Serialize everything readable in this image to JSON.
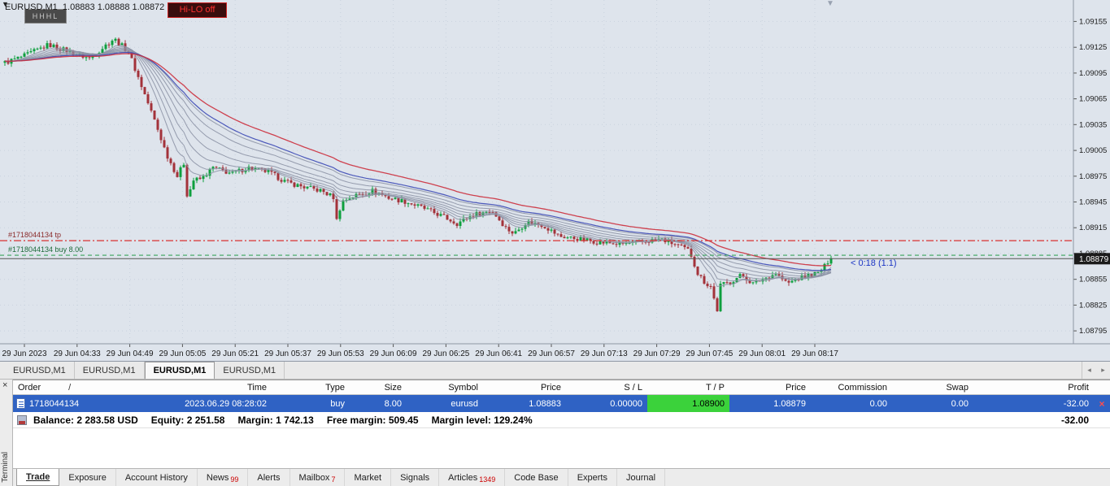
{
  "chart": {
    "symbol_ohlc": "EURUSD,M1  1.08883 1.08888 1.08872 1.08",
    "hhhl_button": "HHHL",
    "hilo_button": "Hi-LO off",
    "menu_arrow": "▼",
    "shift_marker": "▼",
    "countdown_label": "< 0:18 (1.1)",
    "tp_line_label": "#1718044134 tp",
    "buy_line_label": "#1718044134 buy 8.00",
    "bid_price": "1.08879",
    "price_range": {
      "max": 1.0918,
      "min": 1.0878
    },
    "levels": {
      "tp": 1.089,
      "buy": 1.08883,
      "bid": 1.08879
    },
    "price_axis": [
      "1.09155",
      "1.09125",
      "1.09095",
      "1.09065",
      "1.09035",
      "1.09005",
      "1.08975",
      "1.08945",
      "1.08915",
      "1.08885",
      "1.08855",
      "1.08825",
      "1.08795"
    ],
    "time_axis": [
      "29 Jun 2023",
      "29 Jun 04:33",
      "29 Jun 04:49",
      "29 Jun 05:05",
      "29 Jun 05:21",
      "29 Jun 05:37",
      "29 Jun 05:53",
      "29 Jun 06:09",
      "29 Jun 06:25",
      "29 Jun 06:41",
      "29 Jun 06:57",
      "29 Jun 07:13",
      "29 Jun 07:29",
      "29 Jun 07:45",
      "29 Jun 08:01",
      "29 Jun 08:17"
    ],
    "anchors": [
      [
        0,
        1.09105
      ],
      [
        30,
        1.09115
      ],
      [
        60,
        1.09128
      ],
      [
        85,
        1.0912
      ],
      [
        110,
        1.09112
      ],
      [
        140,
        1.09135
      ],
      [
        158,
        1.0912
      ],
      [
        172,
        1.09085
      ],
      [
        190,
        1.0904
      ],
      [
        205,
        1.09
      ],
      [
        218,
        1.08975
      ],
      [
        226,
        1.0899
      ],
      [
        231,
        1.08945
      ],
      [
        236,
        1.0897
      ],
      [
        248,
        1.08972
      ],
      [
        262,
        1.08985
      ],
      [
        285,
        1.08978
      ],
      [
        305,
        1.08985
      ],
      [
        330,
        1.0898
      ],
      [
        352,
        1.08968
      ],
      [
        375,
        1.08962
      ],
      [
        395,
        1.08958
      ],
      [
        411,
        1.0895
      ],
      [
        415,
        1.08915
      ],
      [
        419,
        1.08945
      ],
      [
        435,
        1.08952
      ],
      [
        458,
        1.08958
      ],
      [
        478,
        1.0895
      ],
      [
        500,
        1.08945
      ],
      [
        520,
        1.08938
      ],
      [
        545,
        1.08928
      ],
      [
        562,
        1.0892
      ],
      [
        582,
        1.0893
      ],
      [
        605,
        1.08935
      ],
      [
        622,
        1.08915
      ],
      [
        632,
        1.08908
      ],
      [
        648,
        1.08922
      ],
      [
        668,
        1.08918
      ],
      [
        688,
        1.08905
      ],
      [
        712,
        1.08902
      ],
      [
        738,
        1.08898
      ],
      [
        762,
        1.08896
      ],
      [
        788,
        1.08898
      ],
      [
        812,
        1.08902
      ],
      [
        832,
        1.08895
      ],
      [
        848,
        1.08888
      ],
      [
        858,
        1.08862
      ],
      [
        868,
        1.0885
      ],
      [
        876,
        1.08846
      ],
      [
        881,
        1.08812
      ],
      [
        886,
        1.08848
      ],
      [
        898,
        1.08852
      ],
      [
        912,
        1.0886
      ],
      [
        926,
        1.0885
      ],
      [
        940,
        1.08856
      ],
      [
        954,
        1.08862
      ],
      [
        968,
        1.0885
      ],
      [
        982,
        1.08856
      ],
      [
        996,
        1.0886
      ],
      [
        1006,
        1.08862
      ],
      [
        1014,
        1.0887
      ],
      [
        1022,
        1.08882
      ]
    ],
    "colors": {
      "up": "#0e9f3e",
      "down": "#a3323a",
      "ma_gray": "#8d94a6",
      "ma_red": "#cc2f3d",
      "ma_blue": "#3c49b5",
      "tp_line": "#d93030",
      "buy_line": "#3aa35c",
      "grid": "#c9d2de",
      "axis": "#8f97a5",
      "bid_box": "#1b1b1b"
    }
  },
  "chart_tabs": [
    {
      "label": "EURUSD,M1",
      "active": false
    },
    {
      "label": "EURUSD,M1",
      "active": false
    },
    {
      "label": "EURUSD,M1",
      "active": true
    },
    {
      "label": "EURUSD,M1",
      "active": false
    }
  ],
  "chart_tabs_scroll": {
    "left": "◂",
    "right": "▸"
  },
  "terminal": {
    "strip_label": "Terminal",
    "close_label": "×",
    "sort_indicator": "/",
    "columns": [
      "Order",
      "Time",
      "Type",
      "Size",
      "Symbol",
      "Price",
      "S / L",
      "T / P",
      "Price",
      "Commission",
      "Swap",
      "Profit"
    ],
    "order_row": {
      "order": "1718044134",
      "time": "2023.06.29 08:28:02",
      "type": "buy",
      "size": "8.00",
      "symbol": "eurusd",
      "price_open": "1.08883",
      "sl": "0.00000",
      "tp": "1.08900",
      "price_current": "1.08879",
      "commission": "0.00",
      "swap": "0.00",
      "profit": "-32.00",
      "close": "×"
    },
    "balance": [
      "Balance: 2 283.58 USD",
      "Equity: 2 251.58",
      "Margin: 1 742.13",
      "Free margin: 509.45",
      "Margin level: 129.24%"
    ],
    "balance_profit": "-32.00",
    "tabs": [
      {
        "label": "Trade",
        "badge": "",
        "active": true
      },
      {
        "label": "Exposure",
        "badge": ""
      },
      {
        "label": "Account History",
        "badge": ""
      },
      {
        "label": "News",
        "badge": "99"
      },
      {
        "label": "Alerts",
        "badge": ""
      },
      {
        "label": "Mailbox",
        "badge": "7"
      },
      {
        "label": "Market",
        "badge": ""
      },
      {
        "label": "Signals",
        "badge": ""
      },
      {
        "label": "Articles",
        "badge": "1349"
      },
      {
        "label": "Code Base",
        "badge": ""
      },
      {
        "label": "Experts",
        "badge": ""
      },
      {
        "label": "Journal",
        "badge": ""
      }
    ]
  }
}
